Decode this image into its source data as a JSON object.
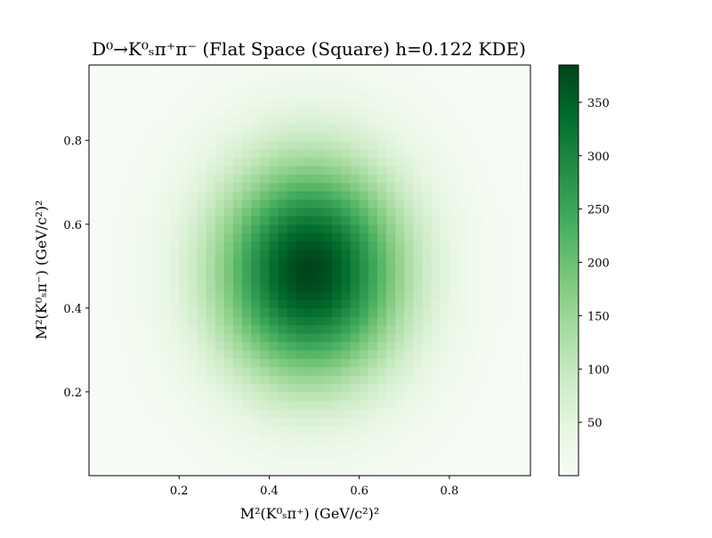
{
  "chart_data": {
    "type": "heatmap",
    "title": "D⁰→K⁰ₛπ⁺π⁻ (Flat Space (Square) h=0.122 KDE)",
    "xlabel": "M²(K⁰ₛπ⁺) (GeV/c²)²",
    "ylabel": "M²(K⁰ₛπ⁻) (GeV/c²)²",
    "xlim": [
      0.0,
      0.98
    ],
    "ylim": [
      0.0,
      0.98
    ],
    "x_ticks": [
      "0.2",
      "0.4",
      "0.6",
      "0.8"
    ],
    "y_ticks": [
      "0.2",
      "0.4",
      "0.6",
      "0.8"
    ],
    "colormap": "Greens",
    "colorbar": {
      "min": 0,
      "max": 385,
      "ticks": [
        "50",
        "100",
        "150",
        "200",
        "250",
        "300",
        "350"
      ]
    },
    "density_model": {
      "shape": "gaussian-blob",
      "peak_value": 385,
      "center": [
        0.49,
        0.49
      ],
      "sigma_x": 0.15,
      "sigma_y": 0.19,
      "bins_x": 49,
      "bins_y": 49
    },
    "grid": false,
    "legend": "none"
  }
}
